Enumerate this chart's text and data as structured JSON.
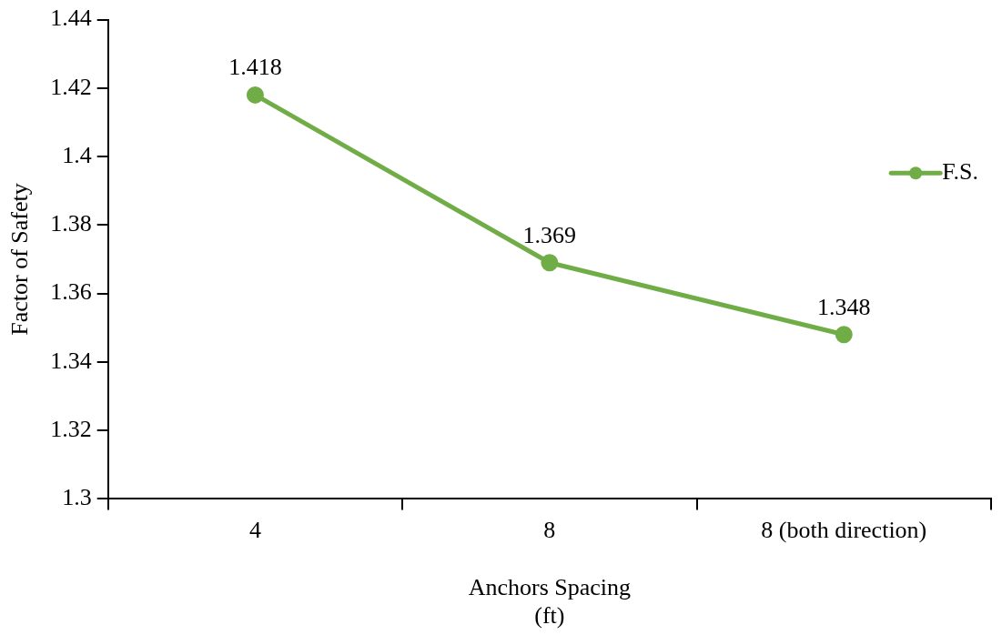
{
  "chart_data": {
    "type": "line",
    "xlabel": "Anchors Spacing\n(ft)",
    "ylabel": "Factor of Safety",
    "categories": [
      "4",
      "8",
      "8 (both direction)"
    ],
    "series": [
      {
        "name": "F.S.",
        "color": "#70ad47",
        "values": [
          1.418,
          1.369,
          1.348
        ]
      }
    ],
    "ylim": [
      1.3,
      1.44
    ],
    "yticks": [
      1.3,
      1.32,
      1.34,
      1.36,
      1.38,
      1.4,
      1.42,
      1.44
    ],
    "grid": false,
    "legend": "right",
    "marker": "circle",
    "line_style": "solid",
    "data_labels": true
  }
}
